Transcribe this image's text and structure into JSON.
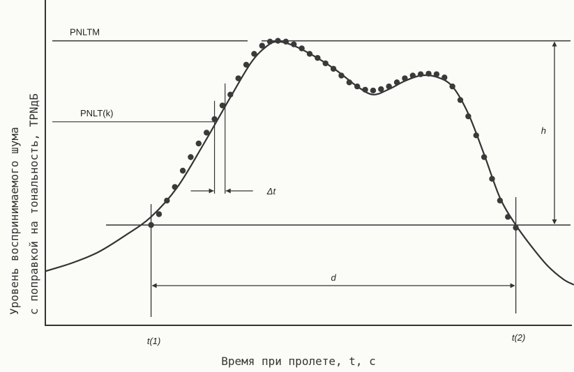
{
  "chart_data": {
    "type": "line",
    "title": "",
    "ylabel_line1": "Уровень воспринимаемого шума",
    "ylabel_line2": "с поправкой на тональность, TPNдБ",
    "xlabel": "Время при пролете, t, с",
    "annotations": {
      "pnltm": "PNLTM",
      "pnlt_k": "PNLT(k)",
      "delta_t": "Δt",
      "h": "h",
      "d": "d",
      "t1": "t(1)",
      "t2": "t(2)"
    },
    "xlim": [
      0,
      100
    ],
    "ylim": [
      0,
      100
    ],
    "series": [
      {
        "curve": [
          [
            0,
            13
          ],
          [
            5,
            16
          ],
          [
            10,
            20
          ],
          [
            15,
            26
          ],
          [
            20,
            33
          ],
          [
            25,
            44
          ],
          [
            30,
            60
          ],
          [
            35,
            77
          ],
          [
            39,
            90
          ],
          [
            42,
            96
          ],
          [
            44,
            97.5
          ],
          [
            47,
            96
          ],
          [
            51,
            92
          ],
          [
            55,
            87
          ],
          [
            59,
            81
          ],
          [
            62,
            78
          ],
          [
            65,
            80
          ],
          [
            68,
            83
          ],
          [
            71,
            85
          ],
          [
            74,
            84.5
          ],
          [
            77,
            81
          ],
          [
            80,
            71
          ],
          [
            83,
            56
          ],
          [
            86,
            40
          ],
          [
            89,
            30
          ],
          [
            92,
            22
          ],
          [
            95,
            15
          ],
          [
            98,
            10
          ],
          [
            100,
            8
          ]
        ],
        "points": [
          [
            20,
            30
          ],
          [
            21.5,
            34
          ],
          [
            23,
            39
          ],
          [
            24.5,
            44
          ],
          [
            26,
            50
          ],
          [
            27.5,
            55
          ],
          [
            29,
            60
          ],
          [
            30.5,
            64
          ],
          [
            32,
            69
          ],
          [
            33.5,
            74
          ],
          [
            35,
            78
          ],
          [
            36.5,
            84
          ],
          [
            38,
            89
          ],
          [
            39.5,
            93
          ],
          [
            41,
            96
          ],
          [
            42.5,
            97.5
          ],
          [
            44,
            97.8
          ],
          [
            45.5,
            97.5
          ],
          [
            47,
            96.5
          ],
          [
            48.5,
            95
          ],
          [
            50,
            93
          ],
          [
            51.5,
            91.5
          ],
          [
            53,
            89.5
          ],
          [
            54.5,
            87.5
          ],
          [
            56,
            85
          ],
          [
            57.5,
            82.5
          ],
          [
            59,
            81
          ],
          [
            60.5,
            79.8
          ],
          [
            62,
            79.5
          ],
          [
            63.5,
            80
          ],
          [
            65,
            81
          ],
          [
            66.5,
            82.5
          ],
          [
            68,
            84
          ],
          [
            69.5,
            85
          ],
          [
            71,
            85.5
          ],
          [
            72.5,
            85.7
          ],
          [
            74,
            85.5
          ],
          [
            75.5,
            84.3
          ],
          [
            77,
            81
          ],
          [
            78.5,
            76
          ],
          [
            80,
            70
          ],
          [
            81.5,
            63
          ],
          [
            83,
            55
          ],
          [
            84.5,
            47
          ],
          [
            86,
            39
          ],
          [
            87.5,
            33
          ],
          [
            89,
            29
          ]
        ]
      }
    ],
    "markers": {
      "pnltm_level": 97.8,
      "pnlt_k_level": 68,
      "base_level": 30,
      "t1": 20,
      "t2": 89,
      "k_time": 32,
      "k_next_time": 34,
      "grid": false
    }
  }
}
